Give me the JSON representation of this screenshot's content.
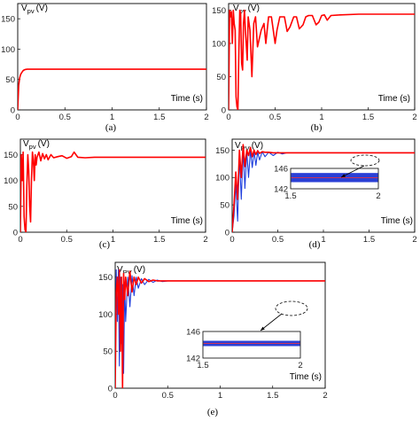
{
  "chart_data": [
    {
      "panel": "a",
      "caption": "(a)",
      "type": "line",
      "ylabel": "V",
      "ylabel_sub": "pv",
      "ylabel_unit": "(V)",
      "xlabel": "Time (s)",
      "xlim": [
        0,
        2
      ],
      "ylim": [
        0,
        175
      ],
      "xticks": [
        "0",
        "0.5",
        "1",
        "1.5",
        "2"
      ],
      "yticks": [
        "0",
        "50",
        "100",
        "150"
      ],
      "series": [
        {
          "color": "#ff0000",
          "x": [
            0,
            0.01,
            0.02,
            0.03,
            0.04,
            0.05,
            0.06,
            0.08,
            0.1,
            0.15,
            0.3,
            0.6,
            1.0,
            1.5,
            2.0
          ],
          "y": [
            0,
            40,
            52,
            58,
            61,
            63,
            65,
            66.5,
            67,
            67,
            67,
            67,
            67,
            67,
            67
          ]
        }
      ]
    },
    {
      "panel": "b",
      "caption": "(b)",
      "type": "line",
      "ylabel": "V",
      "ylabel_sub": "pv",
      "ylabel_unit": "(V)",
      "xlabel": "Time (s)",
      "xlim": [
        0,
        2
      ],
      "ylim": [
        0,
        160
      ],
      "xticks": [
        "0",
        "0.5",
        "1",
        "1.5",
        "2"
      ],
      "yticks": [
        "0",
        "50",
        "100",
        "150"
      ],
      "series": [
        {
          "color": "#ff0000",
          "x": [
            0,
            0.01,
            0.02,
            0.03,
            0.04,
            0.05,
            0.06,
            0.07,
            0.08,
            0.09,
            0.1,
            0.11,
            0.12,
            0.13,
            0.14,
            0.15,
            0.16,
            0.17,
            0.18,
            0.19,
            0.2,
            0.21,
            0.23,
            0.25,
            0.27,
            0.29,
            0.31,
            0.35,
            0.38,
            0.4,
            0.43,
            0.46,
            0.5,
            0.52,
            0.55,
            0.6,
            0.63,
            0.66,
            0.7,
            0.73,
            0.76,
            0.8,
            0.83,
            0.86,
            0.9,
            0.94,
            0.97,
            1.0,
            1.03,
            1.06,
            1.1,
            1.2,
            1.4,
            1.6,
            1.8,
            2.0
          ],
          "y": [
            0,
            150,
            140,
            148,
            100,
            150,
            130,
            120,
            20,
            5,
            0,
            90,
            150,
            145,
            70,
            60,
            130,
            150,
            120,
            100,
            75,
            140,
            120,
            50,
            130,
            140,
            95,
            120,
            130,
            100,
            140,
            140,
            100,
            120,
            140,
            140,
            118,
            125,
            140,
            140,
            122,
            128,
            140,
            142,
            142,
            128,
            132,
            142,
            143,
            135,
            142,
            143,
            144,
            144,
            144,
            144
          ]
        }
      ]
    },
    {
      "panel": "c",
      "caption": "(c)",
      "type": "line",
      "ylabel": "V",
      "ylabel_sub": "pv",
      "ylabel_unit": "(V)",
      "xlabel": "Time (s)",
      "xlim": [
        0,
        2
      ],
      "ylim": [
        0,
        180
      ],
      "xticks": [
        "0",
        "0.5",
        "1",
        "1.5",
        "2"
      ],
      "yticks": [
        "0",
        "50",
        "100",
        "150"
      ],
      "series": [
        {
          "color": "#ff0000",
          "x": [
            0,
            0.01,
            0.02,
            0.03,
            0.04,
            0.05,
            0.06,
            0.07,
            0.08,
            0.09,
            0.1,
            0.11,
            0.12,
            0.13,
            0.14,
            0.15,
            0.16,
            0.17,
            0.18,
            0.2,
            0.22,
            0.24,
            0.26,
            0.28,
            0.3,
            0.33,
            0.36,
            0.4,
            0.45,
            0.5,
            0.55,
            0.58,
            0.62,
            0.7,
            0.8,
            1.0,
            1.5,
            2.0
          ],
          "y": [
            0,
            150,
            100,
            155,
            30,
            5,
            0,
            90,
            150,
            120,
            50,
            20,
            100,
            155,
            140,
            100,
            150,
            130,
            145,
            155,
            138,
            152,
            142,
            150,
            140,
            150,
            144,
            146,
            148,
            143,
            146,
            155,
            145,
            144,
            145,
            145,
            145,
            145
          ]
        }
      ]
    },
    {
      "panel": "d",
      "caption": "(d)",
      "type": "line",
      "ylabel": "V",
      "ylabel_sub": "PV",
      "ylabel_unit": "(V)",
      "xlabel": "Time (s)",
      "xlim": [
        0,
        2
      ],
      "ylim": [
        0,
        170
      ],
      "xticks": [
        "0",
        "0.5",
        "1",
        "1.5",
        "2"
      ],
      "yticks": [
        "0",
        "50",
        "100",
        "150"
      ],
      "series": [
        {
          "color": "#1f3fdd",
          "x": [
            0,
            0.02,
            0.04,
            0.06,
            0.08,
            0.1,
            0.12,
            0.14,
            0.16,
            0.18,
            0.2,
            0.22,
            0.24,
            0.26,
            0.28,
            0.3,
            0.33,
            0.36,
            0.4,
            0.45,
            0.5,
            0.55,
            0.6,
            0.7,
            0.8,
            1.0,
            1.5,
            2.0
          ],
          "y": [
            0,
            30,
            90,
            20,
            140,
            60,
            150,
            80,
            148,
            100,
            150,
            118,
            148,
            122,
            147,
            132,
            147,
            138,
            146,
            140,
            146,
            143,
            145,
            145,
            145,
            145,
            145,
            145
          ]
        },
        {
          "color": "#ff0000",
          "x": [
            0,
            0.02,
            0.04,
            0.06,
            0.08,
            0.1,
            0.12,
            0.14,
            0.16,
            0.18,
            0.2,
            0.22,
            0.24,
            0.26,
            0.28,
            0.3,
            0.33,
            0.36,
            0.4,
            0.45,
            0.5,
            0.6,
            0.8,
            1.0,
            1.5,
            2.0
          ],
          "y": [
            0,
            50,
            110,
            60,
            150,
            100,
            160,
            120,
            150,
            140,
            155,
            138,
            150,
            142,
            149,
            144,
            147,
            146,
            146,
            145,
            145,
            145,
            145,
            145,
            145,
            145
          ]
        }
      ],
      "inset": {
        "xlim": [
          1.5,
          2
        ],
        "ylim": [
          142,
          146
        ],
        "xticks": [
          "1.5",
          "2"
        ],
        "yticks": [
          "142",
          "146"
        ],
        "band": [
          143.3,
          145.1
        ],
        "center": 144.2
      }
    },
    {
      "panel": "e",
      "caption": "(e)",
      "type": "line",
      "ylabel": "V",
      "ylabel_sub": "PV",
      "ylabel_unit": "(V)",
      "xlabel": "Time (s)",
      "xlim": [
        0,
        2
      ],
      "ylim": [
        0,
        170
      ],
      "xticks": [
        "0",
        "0.5",
        "1",
        "1.5",
        "2"
      ],
      "yticks": [
        "0",
        "50",
        "100",
        "150"
      ],
      "series": [
        {
          "color": "#1f3fdd",
          "x": [
            0,
            0.01,
            0.02,
            0.03,
            0.04,
            0.05,
            0.06,
            0.07,
            0.08,
            0.09,
            0.1,
            0.12,
            0.14,
            0.16,
            0.18,
            0.2,
            0.22,
            0.25,
            0.28,
            0.32,
            0.36,
            0.4,
            0.45,
            0.5,
            0.6,
            0.8,
            1.0,
            1.5,
            2.0
          ],
          "y": [
            0,
            160,
            90,
            160,
            30,
            150,
            60,
            140,
            20,
            140,
            90,
            150,
            110,
            152,
            125,
            150,
            135,
            148,
            140,
            147,
            143,
            146,
            144,
            145,
            145,
            145,
            145,
            145,
            145
          ]
        },
        {
          "color": "#ff0000",
          "x": [
            0,
            0.01,
            0.02,
            0.03,
            0.04,
            0.05,
            0.06,
            0.07,
            0.08,
            0.09,
            0.1,
            0.12,
            0.14,
            0.16,
            0.18,
            0.2,
            0.22,
            0.25,
            0.28,
            0.32,
            0.36,
            0.4,
            0.5,
            0.6,
            0.8,
            1.0,
            1.5,
            2.0
          ],
          "y": [
            0,
            130,
            150,
            100,
            160,
            50,
            150,
            0,
            155,
            120,
            150,
            125,
            158,
            130,
            150,
            140,
            150,
            142,
            148,
            144,
            146,
            145,
            145,
            145,
            145,
            145,
            145,
            145
          ]
        }
      ],
      "inset": {
        "xlim": [
          1.5,
          2
        ],
        "ylim": [
          142,
          146
        ],
        "xticks": [
          "1.5",
          "2"
        ],
        "yticks": [
          "142",
          "146"
        ],
        "band": [
          143.8,
          144.6
        ],
        "center": 144.2
      }
    }
  ]
}
